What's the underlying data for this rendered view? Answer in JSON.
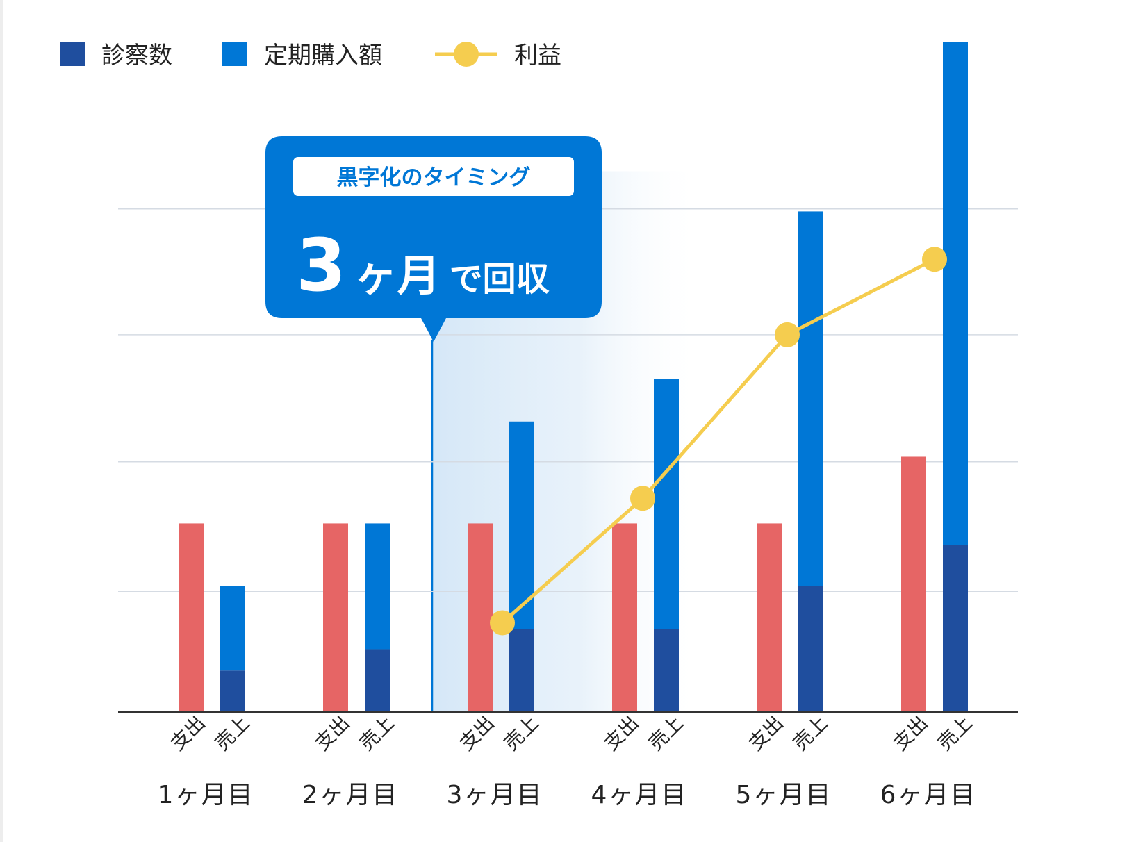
{
  "chart_data": {
    "type": "bar",
    "title": "",
    "categories": [
      "1ヶ月目",
      "2ヶ月目",
      "3ヶ月目",
      "4ヶ月目",
      "5ヶ月目",
      "6ヶ月目"
    ],
    "bar_labels": [
      "支出",
      "売上"
    ],
    "series": [
      {
        "name": "",
        "key": "expense",
        "color": "#e66565",
        "stack": "支出",
        "values": [
          1.5,
          1.5,
          1.5,
          1.5,
          1.5,
          2.03
        ]
      },
      {
        "name": "診察数",
        "key": "consultations",
        "color": "#1f4e9e",
        "stack": "売上",
        "values": [
          0.33,
          0.5,
          0.66,
          0.66,
          1.0,
          1.33
        ]
      },
      {
        "name": "定期購入額",
        "key": "subscription",
        "color": "#0077d6",
        "stack": "売上",
        "values": [
          0.67,
          1.0,
          1.65,
          1.99,
          2.98,
          4.0
        ]
      },
      {
        "name": "利益",
        "key": "profit",
        "type": "line",
        "color": "#f5cd4f",
        "values": [
          null,
          null,
          0.71,
          1.7,
          3.0,
          3.6
        ]
      }
    ],
    "ylim": [
      0,
      5.33
    ],
    "grid": true,
    "legend_position": "top-left",
    "annotation": {
      "category": "3ヶ月目",
      "subtitle": "黒字化のタイミング",
      "number": "3",
      "unit": "ヶ月",
      "suffix": "で回収",
      "color": "#0077d6"
    }
  }
}
